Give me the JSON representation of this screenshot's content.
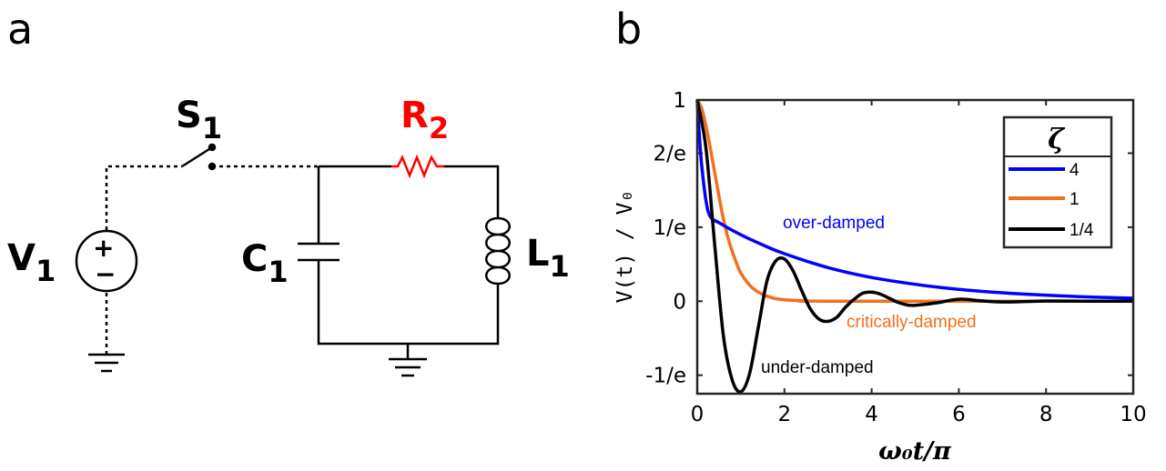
{
  "panel_a": {
    "label": "a",
    "components": {
      "source": {
        "main": "V",
        "sub": "1",
        "plus": "+",
        "minus": "−"
      },
      "switch": {
        "main": "S",
        "sub": "1"
      },
      "resistor": {
        "main": "R",
        "sub": "2"
      },
      "capacitor": {
        "main": "C",
        "sub": "1"
      },
      "inductor": {
        "main": "L",
        "sub": "1"
      }
    },
    "colors": {
      "wire": "#000000",
      "resistor": "#ff0000"
    }
  },
  "panel_b": {
    "label": "b",
    "xlabel": "ω₀t/π",
    "ylabel": "V(t) / V₀"
  },
  "chart_data": {
    "type": "line",
    "xlim": [
      0,
      10
    ],
    "ylim": [
      -0.4598,
      1.0
    ],
    "xticks": [
      0,
      2,
      4,
      6,
      8,
      10
    ],
    "xtick_labels": [
      "0",
      "2",
      "4",
      "6",
      "8",
      "10"
    ],
    "yticks": [
      -0.3679,
      0,
      0.3679,
      0.7358,
      1.0
    ],
    "ytick_labels": [
      "-1/e",
      "0",
      "1/e",
      "2/e",
      "1"
    ],
    "legend": {
      "title": "ζ",
      "position": "top-right"
    },
    "series": [
      {
        "name": "4",
        "color": "#0000ff",
        "x": [
          0,
          0.05,
          0.1,
          0.2,
          0.3,
          0.5,
          1,
          1.5,
          2,
          3,
          4,
          5,
          6,
          7,
          8,
          9,
          10
        ],
        "y": [
          1.0,
          0.82,
          0.68,
          0.5,
          0.42,
          0.39,
          0.33,
          0.28,
          0.236,
          0.167,
          0.118,
          0.084,
          0.059,
          0.042,
          0.03,
          0.021,
          0.015
        ]
      },
      {
        "name": "1",
        "color": "#f07020",
        "x": [
          0,
          0.1,
          0.2,
          0.3,
          0.4,
          0.5,
          0.6,
          0.7,
          0.8,
          0.9,
          1.0,
          1.2,
          1.4,
          1.6,
          1.8,
          2.0,
          2.5,
          3,
          10
        ],
        "y": [
          1.0,
          0.96,
          0.87,
          0.76,
          0.64,
          0.52,
          0.41,
          0.32,
          0.25,
          0.19,
          0.14,
          0.08,
          0.045,
          0.025,
          0.013,
          0.007,
          0.002,
          0.0005,
          0.0
        ]
      },
      {
        "name": "1/4",
        "color": "#000000",
        "x": [
          0,
          0.2,
          0.4,
          0.6,
          0.8,
          1.0,
          1.2,
          1.4,
          1.6,
          1.8,
          2.0,
          2.2,
          2.4,
          2.6,
          2.8,
          3.0,
          3.2,
          3.4,
          3.6,
          3.8,
          4.0,
          4.2,
          4.4,
          4.6,
          4.8,
          5.0,
          5.5,
          6.0,
          6.5,
          7.0,
          8.0,
          9.0,
          10
        ],
        "y": [
          1.0,
          0.76,
          0.28,
          -0.17,
          -0.39,
          -0.45,
          -0.36,
          -0.13,
          0.1,
          0.2,
          0.21,
          0.15,
          0.05,
          -0.04,
          -0.09,
          -0.1,
          -0.08,
          -0.03,
          0.01,
          0.04,
          0.045,
          0.035,
          0.015,
          -0.005,
          -0.018,
          -0.02,
          -0.008,
          0.01,
          0.002,
          -0.004,
          0.001,
          0.0,
          0.0
        ]
      }
    ],
    "annotations": [
      {
        "text": "over-damped",
        "color": "#0000ff"
      },
      {
        "text": "critically-damped",
        "color": "#f07020"
      },
      {
        "text": "under-damped",
        "color": "#000000"
      }
    ]
  }
}
